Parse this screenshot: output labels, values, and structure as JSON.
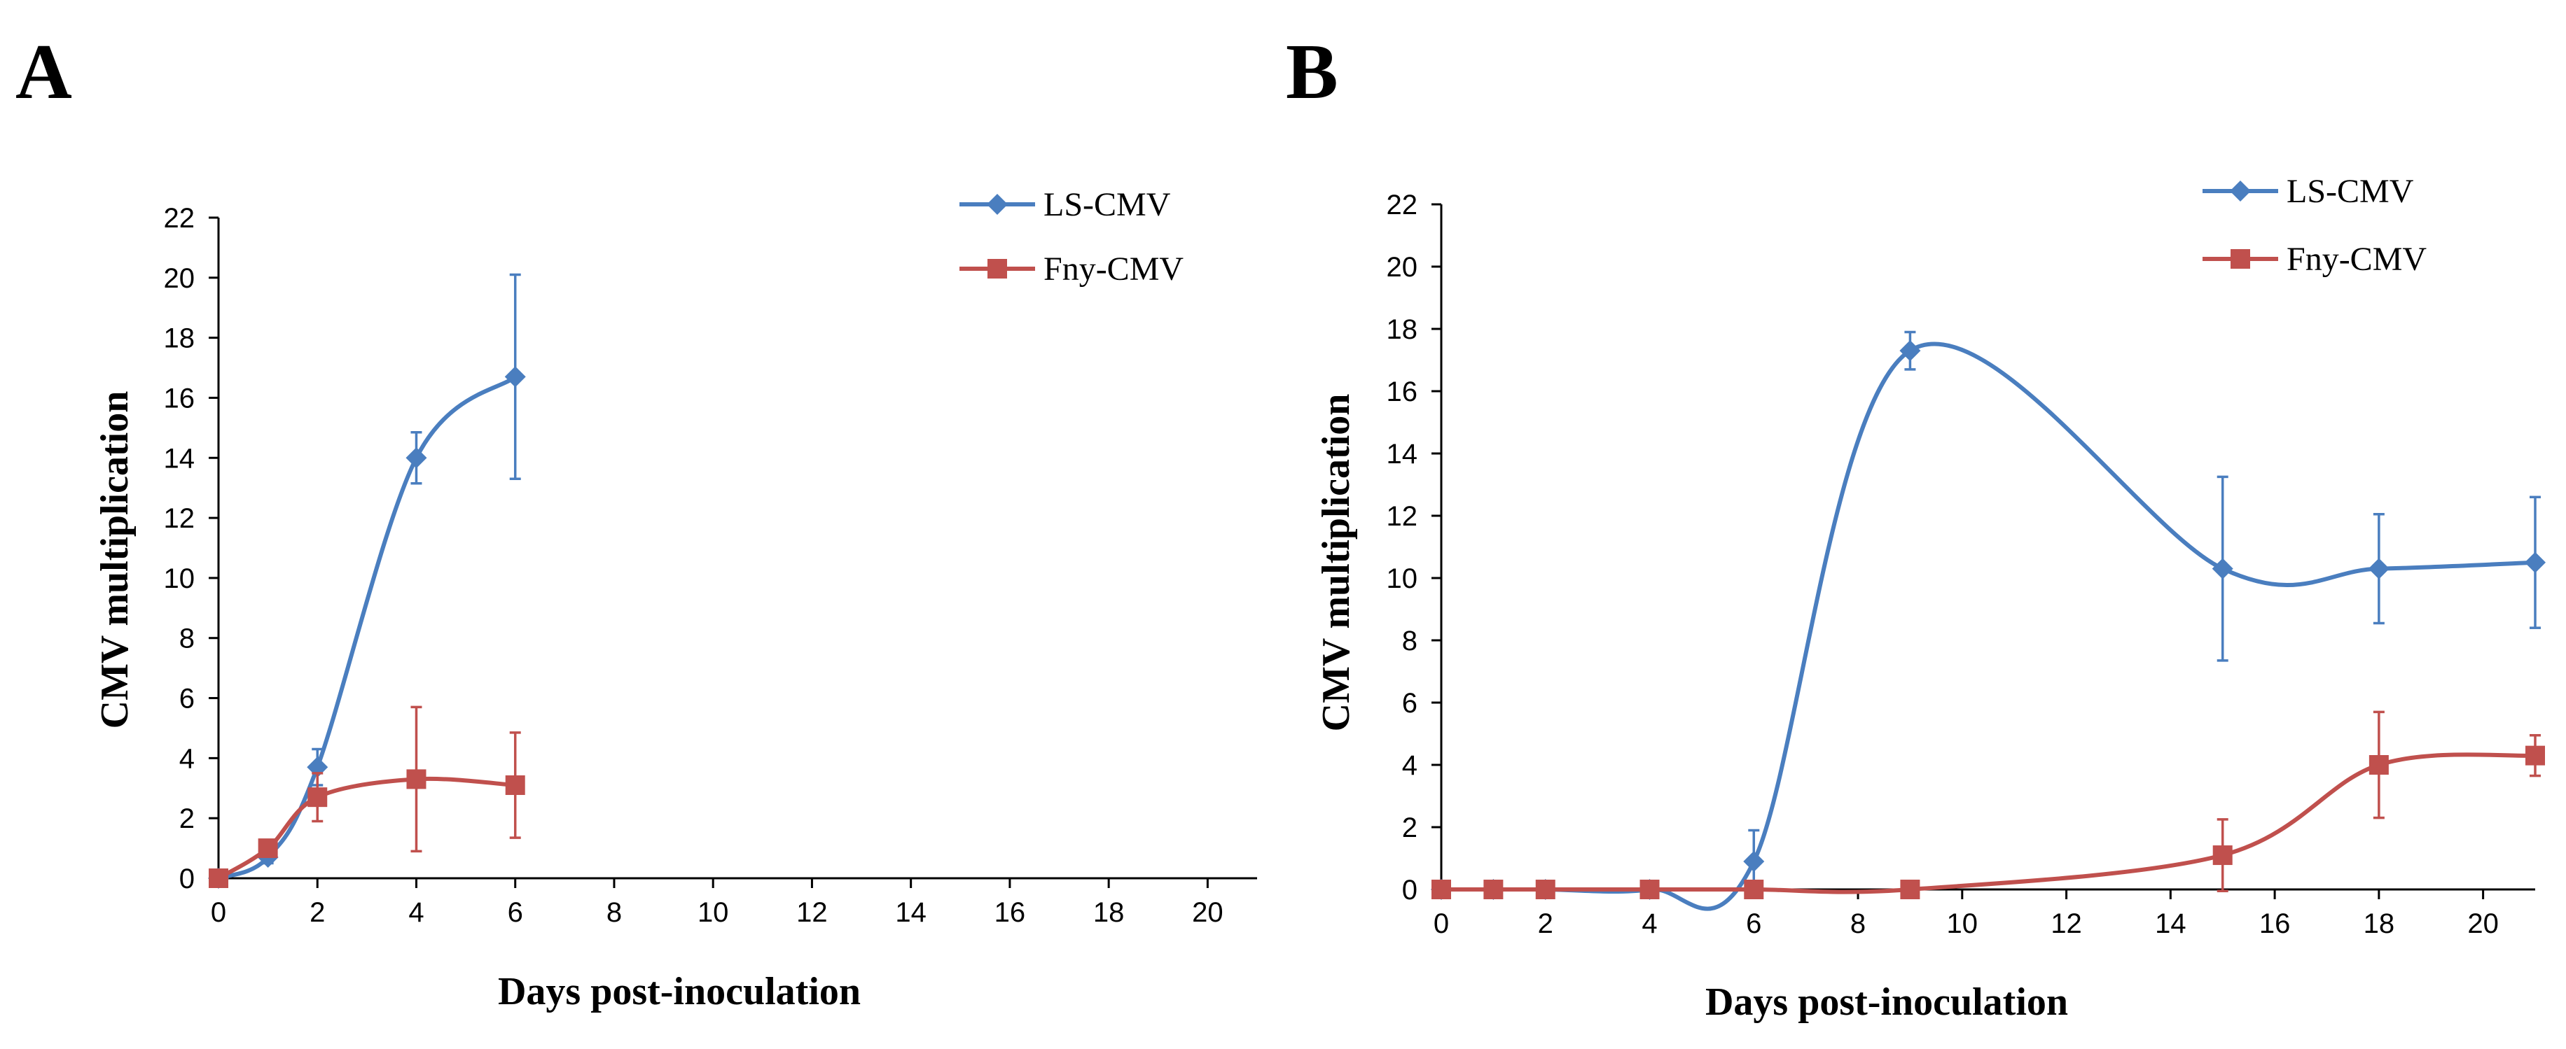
{
  "chart_data": [
    {
      "panel_label": "A",
      "type": "line",
      "title": "",
      "xlabel": "Days post-inoculation",
      "ylabel": "CMV multiplication",
      "xlim": [
        0,
        21
      ],
      "ylim": [
        0,
        22
      ],
      "xticks": [
        0,
        2,
        4,
        6,
        8,
        10,
        12,
        14,
        16,
        18,
        20
      ],
      "yticks": [
        0,
        2,
        4,
        6,
        8,
        10,
        12,
        14,
        16,
        18,
        20,
        22
      ],
      "legend_position": "top-right",
      "series": [
        {
          "name": "LS-CMV",
          "color": "#4a7ebf",
          "marker": "diamond",
          "x": [
            0,
            1,
            2,
            4,
            6
          ],
          "values": [
            0,
            0.7,
            3.7,
            14.0,
            16.7
          ],
          "errors": [
            0,
            0.2,
            0.6,
            0.85,
            3.4
          ]
        },
        {
          "name": "Fny-CMV",
          "color": "#c0504d",
          "marker": "square",
          "x": [
            0,
            1,
            2,
            4,
            6
          ],
          "values": [
            0,
            1.0,
            2.7,
            3.3,
            3.1
          ],
          "errors": [
            0,
            0.1,
            0.8,
            2.4,
            1.75
          ]
        }
      ]
    },
    {
      "panel_label": "B",
      "type": "line",
      "title": "",
      "xlabel": "Days post-inoculation",
      "ylabel": "CMV multiplication",
      "xlim": [
        0,
        21
      ],
      "ylim": [
        0,
        22
      ],
      "xticks": [
        0,
        2,
        4,
        6,
        8,
        10,
        12,
        14,
        16,
        18,
        20
      ],
      "yticks": [
        0,
        2,
        4,
        6,
        8,
        10,
        12,
        14,
        16,
        18,
        20,
        22
      ],
      "legend_position": "top-right",
      "series": [
        {
          "name": "LS-CMV",
          "color": "#4a7ebf",
          "marker": "diamond",
          "x": [
            0,
            1,
            2,
            4,
            6,
            9,
            15,
            18,
            21
          ],
          "values": [
            0,
            0,
            0,
            0,
            0.9,
            17.3,
            10.3,
            10.3,
            10.5
          ],
          "errors": [
            0,
            0,
            0,
            0,
            1.0,
            0.6,
            2.95,
            1.75,
            2.1
          ]
        },
        {
          "name": "Fny-CMV",
          "color": "#c0504d",
          "marker": "square",
          "x": [
            0,
            1,
            2,
            4,
            6,
            9,
            15,
            18,
            21
          ],
          "values": [
            0,
            0,
            0,
            0,
            0,
            0,
            1.1,
            4.0,
            4.3
          ],
          "errors": [
            0,
            0,
            0,
            0,
            0,
            0,
            1.15,
            1.7,
            0.65
          ]
        }
      ]
    }
  ]
}
